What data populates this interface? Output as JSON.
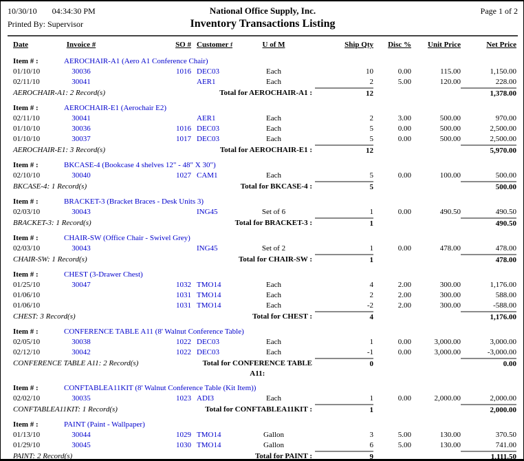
{
  "colors": {
    "accent_blue": "#0000CC",
    "sum_line_gray": "#8a8a8a"
  },
  "page": {
    "date": "10/30/10",
    "time": "04:34:30 PM",
    "company": "National Office Supply, Inc.",
    "page_label": "Page 1 of 2",
    "printed_by": "Printed By: Supervisor",
    "title": "Inventory Transactions Listing"
  },
  "table": {
    "item_label": "Item # :",
    "headers": [
      "Date",
      "Invoice #",
      "SO #",
      "Customer #",
      "U of M",
      "Ship Qty",
      "Disc %",
      "Unit Price",
      "Net Price"
    ],
    "groups": [
      {
        "item": "AEROCHAIR-A1 (Aero A1 Conference Chair)",
        "rows": [
          {
            "date": "01/10/10",
            "invoice": "30036",
            "so": "1016",
            "customer": "DEC03",
            "uofm": "Each",
            "qty": "10",
            "disc": "0.00",
            "unit": "115.00",
            "net": "1,150.00"
          },
          {
            "date": "02/11/10",
            "invoice": "30041",
            "so": "",
            "customer": "AER1",
            "uofm": "Each",
            "qty": "2",
            "disc": "5.00",
            "unit": "120.00",
            "net": "228.00"
          }
        ],
        "record_note": "AEROCHAIR-A1: 2 Record(s)",
        "total_label": "Total for AEROCHAIR-A1 :",
        "total_qty": "12",
        "total_net": "1,378.00"
      },
      {
        "item": "AEROCHAIR-E1 (Aerochair E2)",
        "rows": [
          {
            "date": "02/11/10",
            "invoice": "30041",
            "so": "",
            "customer": "AER1",
            "uofm": "Each",
            "qty": "2",
            "disc": "3.00",
            "unit": "500.00",
            "net": "970.00"
          },
          {
            "date": "01/10/10",
            "invoice": "30036",
            "so": "1016",
            "customer": "DEC03",
            "uofm": "Each",
            "qty": "5",
            "disc": "0.00",
            "unit": "500.00",
            "net": "2,500.00"
          },
          {
            "date": "01/10/10",
            "invoice": "30037",
            "so": "1017",
            "customer": "DEC03",
            "uofm": "Each",
            "qty": "5",
            "disc": "0.00",
            "unit": "500.00",
            "net": "2,500.00"
          }
        ],
        "record_note": "AEROCHAIR-E1: 3 Record(s)",
        "total_label": "Total for AEROCHAIR-E1 :",
        "total_qty": "12",
        "total_net": "5,970.00"
      },
      {
        "item": "BKCASE-4 (Bookcase 4 shelves 12\" - 48\" X 30\")",
        "rows": [
          {
            "date": "02/10/10",
            "invoice": "30040",
            "so": "1027",
            "customer": "CAM1",
            "uofm": "Each",
            "qty": "5",
            "disc": "0.00",
            "unit": "100.00",
            "net": "500.00"
          }
        ],
        "record_note": "BKCASE-4: 1 Record(s)",
        "total_label": "Total for BKCASE-4 :",
        "total_qty": "5",
        "total_net": "500.00"
      },
      {
        "item": "BRACKET-3 (Bracket Braces - Desk Units 3)",
        "rows": [
          {
            "date": "02/03/10",
            "invoice": "30043",
            "so": "",
            "customer": "ING45",
            "uofm": "Set of 6",
            "qty": "1",
            "disc": "0.00",
            "unit": "490.50",
            "net": "490.50"
          }
        ],
        "record_note": "BRACKET-3: 1 Record(s)",
        "total_label": "Total for BRACKET-3 :",
        "total_qty": "1",
        "total_net": "490.50"
      },
      {
        "item": "CHAIR-SW (Office Chair - Swivel Grey)",
        "rows": [
          {
            "date": "02/03/10",
            "invoice": "30043",
            "so": "",
            "customer": "ING45",
            "uofm": "Set of 2",
            "qty": "1",
            "disc": "0.00",
            "unit": "478.00",
            "net": "478.00"
          }
        ],
        "record_note": "CHAIR-SW: 1 Record(s)",
        "total_label": "Total for CHAIR-SW :",
        "total_qty": "1",
        "total_net": "478.00"
      },
      {
        "item": "CHEST (3-Drawer Chest)",
        "rows": [
          {
            "date": "01/25/10",
            "invoice": "30047",
            "so": "1032",
            "customer": "TMO14",
            "uofm": "Each",
            "qty": "4",
            "disc": "2.00",
            "unit": "300.00",
            "net": "1,176.00"
          },
          {
            "date": "01/06/10",
            "invoice": "",
            "so": "1031",
            "customer": "TMO14",
            "uofm": "Each",
            "qty": "2",
            "disc": "2.00",
            "unit": "300.00",
            "net": "588.00"
          },
          {
            "date": "01/06/10",
            "invoice": "",
            "so": "1031",
            "customer": "TMO14",
            "uofm": "Each",
            "qty": "-2",
            "disc": "2.00",
            "unit": "300.00",
            "net": "-588.00"
          }
        ],
        "record_note": "CHEST: 3 Record(s)",
        "total_label": "Total for CHEST :",
        "total_qty": "4",
        "total_net": "1,176.00"
      },
      {
        "item": "CONFERENCE TABLE A11 (8' Walnut Conference Table)",
        "rows": [
          {
            "date": "02/05/10",
            "invoice": "30038",
            "so": "1022",
            "customer": "DEC03",
            "uofm": "Each",
            "qty": "1",
            "disc": "0.00",
            "unit": "3,000.00",
            "net": "3,000.00"
          },
          {
            "date": "02/12/10",
            "invoice": "30042",
            "so": "1022",
            "customer": "DEC03",
            "uofm": "Each",
            "qty": "-1",
            "disc": "0.00",
            "unit": "3,000.00",
            "net": "-3,000.00"
          }
        ],
        "record_note": "CONFERENCE TABLE A11: 2 Record(s)",
        "total_label": "Total for CONFERENCE TABLE\nA11:",
        "total_qty": "0",
        "total_net": "0.00"
      },
      {
        "item": "CONFTABLEA11KIT (8' Walnut Conference Table (Kit Item))",
        "rows": [
          {
            "date": "02/02/10",
            "invoice": "30035",
            "so": "1023",
            "customer": "ADI3",
            "uofm": "Each",
            "qty": "1",
            "disc": "0.00",
            "unit": "2,000.00",
            "net": "2,000.00"
          }
        ],
        "record_note": "CONFTABLEA11KIT: 1 Record(s)",
        "total_label": "Total for CONFTABLEA11KIT :",
        "total_qty": "1",
        "total_net": "2,000.00"
      },
      {
        "item": "PAINT (Paint - Wallpaper)",
        "rows": [
          {
            "date": "01/13/10",
            "invoice": "30044",
            "so": "1029",
            "customer": "TMO14",
            "uofm": "Gallon",
            "qty": "3",
            "disc": "5.00",
            "unit": "130.00",
            "net": "370.50"
          },
          {
            "date": "01/29/10",
            "invoice": "30045",
            "so": "1030",
            "customer": "TMO14",
            "uofm": "Gallon",
            "qty": "6",
            "disc": "5.00",
            "unit": "130.00",
            "net": "741.00"
          }
        ],
        "record_note": "PAINT: 2 Record(s)",
        "total_label": "Total for PAINT :",
        "total_qty": "9",
        "total_net": "1,111.50"
      }
    ]
  }
}
